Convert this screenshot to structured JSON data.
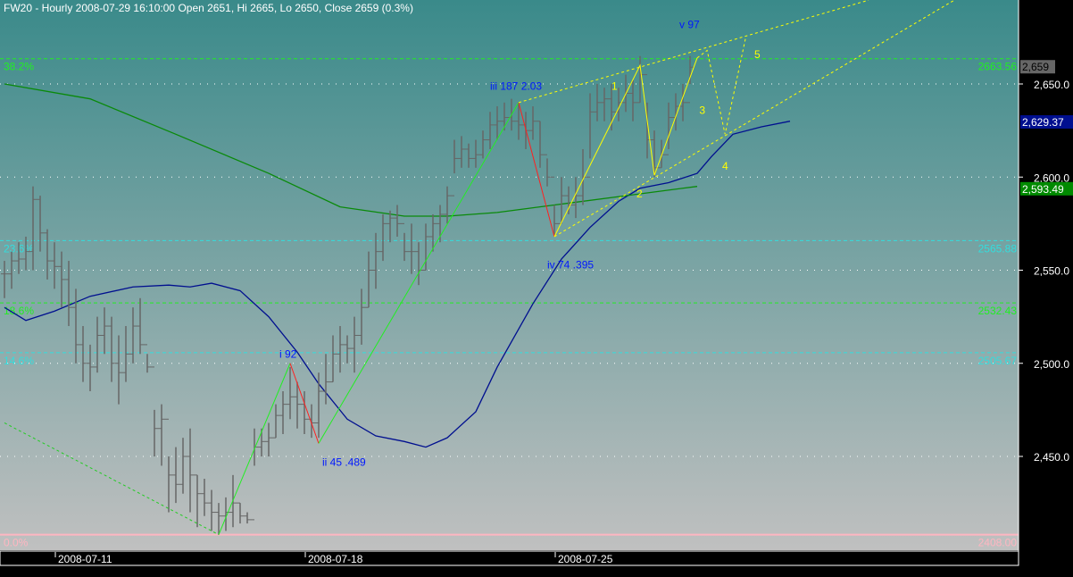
{
  "header": {
    "title": "FW20 - Hourly 2008-07-29 16:10:00 Open 2651, Hi 2665, Lo 2650, Close 2659 (0.3%)"
  },
  "chart_data": {
    "type": "ohlc",
    "ylim": [
      2402,
      2700
    ],
    "grid": true,
    "x_ticks": [
      {
        "index": 7,
        "label": "2008-07-11"
      },
      {
        "index": 42,
        "label": "2008-07-18"
      },
      {
        "index": 77,
        "label": "2008-07-25"
      }
    ],
    "y_ticks": [
      {
        "value": 2650,
        "label": "2,650.0"
      },
      {
        "value": 2600,
        "label": "2,600.0"
      },
      {
        "value": 2550,
        "label": "2,550.0"
      },
      {
        "value": 2500,
        "label": "2,500.0"
      },
      {
        "value": 2450,
        "label": "2,450.0"
      }
    ],
    "bars_hlc": [
      [
        2555,
        2535,
        2548
      ],
      [
        2560,
        2540,
        2555
      ],
      [
        2565,
        2548,
        2556
      ],
      [
        2568,
        2550,
        2560
      ],
      [
        2595,
        2550,
        2588
      ],
      [
        2590,
        2560,
        2570
      ],
      [
        2572,
        2545,
        2555
      ],
      [
        2565,
        2540,
        2552
      ],
      [
        2560,
        2530,
        2545
      ],
      [
        2555,
        2520,
        2530
      ],
      [
        2540,
        2500,
        2510
      ],
      [
        2520,
        2490,
        2500
      ],
      [
        2510,
        2485,
        2498
      ],
      [
        2525,
        2495,
        2515
      ],
      [
        2530,
        2505,
        2520
      ],
      [
        2525,
        2490,
        2500
      ],
      [
        2515,
        2478,
        2495
      ],
      [
        2520,
        2490,
        2505
      ],
      [
        2530,
        2500,
        2520
      ],
      [
        2535,
        2505,
        2510
      ],
      [
        2505,
        2495,
        2498
      ],
      [
        2475,
        2450,
        2465
      ],
      [
        2478,
        2445,
        2470
      ],
      [
        2450,
        2420,
        2440
      ],
      [
        2455,
        2425,
        2435
      ],
      [
        2460,
        2430,
        2450
      ],
      [
        2465,
        2420,
        2440
      ],
      [
        2440,
        2412,
        2430
      ],
      [
        2438,
        2418,
        2425
      ],
      [
        2432,
        2410,
        2420
      ],
      [
        2425,
        2408,
        2418
      ],
      [
        2428,
        2410,
        2420
      ],
      [
        2440,
        2412,
        2425
      ],
      [
        2425,
        2414,
        2418
      ],
      [
        2420,
        2414,
        2416
      ],
      [
        2465,
        2445,
        2455
      ],
      [
        2465,
        2450,
        2458
      ],
      [
        2468,
        2450,
        2460
      ],
      [
        2478,
        2460,
        2472
      ],
      [
        2485,
        2462,
        2478
      ],
      [
        2498,
        2470,
        2482
      ],
      [
        2490,
        2465,
        2478
      ],
      [
        2485,
        2462,
        2470
      ],
      [
        2478,
        2460,
        2468
      ],
      [
        2495,
        2460,
        2485
      ],
      [
        2505,
        2478,
        2490
      ],
      [
        2515,
        2490,
        2505
      ],
      [
        2520,
        2495,
        2510
      ],
      [
        2515,
        2500,
        2508
      ],
      [
        2525,
        2495,
        2515
      ],
      [
        2540,
        2510,
        2530
      ],
      [
        2560,
        2530,
        2550
      ],
      [
        2570,
        2540,
        2560
      ],
      [
        2580,
        2555,
        2575
      ],
      [
        2582,
        2565,
        2578
      ],
      [
        2585,
        2568,
        2575
      ],
      [
        2570,
        2555,
        2560
      ],
      [
        2575,
        2548,
        2560
      ],
      [
        2565,
        2542,
        2550
      ],
      [
        2575,
        2550,
        2568
      ],
      [
        2580,
        2560,
        2575
      ],
      [
        2585,
        2565,
        2580
      ],
      [
        2595,
        2575,
        2590
      ],
      [
        2620,
        2602,
        2610
      ],
      [
        2622,
        2605,
        2615
      ],
      [
        2618,
        2605,
        2610
      ],
      [
        2620,
        2605,
        2612
      ],
      [
        2625,
        2610,
        2620
      ],
      [
        2635,
        2615,
        2628
      ],
      [
        2638,
        2620,
        2630
      ],
      [
        2640,
        2625,
        2632
      ],
      [
        2642,
        2625,
        2630
      ],
      [
        2640,
        2620,
        2628
      ],
      [
        2635,
        2615,
        2625
      ],
      [
        2638,
        2620,
        2630
      ],
      [
        2630,
        2605,
        2612
      ],
      [
        2610,
        2595,
        2600
      ],
      [
        2585,
        2568,
        2575
      ],
      [
        2600,
        2575,
        2590
      ],
      [
        2595,
        2580,
        2585
      ],
      [
        2600,
        2578,
        2590
      ],
      [
        2615,
        2585,
        2600
      ],
      [
        2645,
        2610,
        2635
      ],
      [
        2650,
        2630,
        2640
      ],
      [
        2648,
        2630,
        2642
      ],
      [
        2650,
        2625,
        2635
      ],
      [
        2648,
        2630,
        2640
      ],
      [
        2655,
        2635,
        2645
      ],
      [
        2652,
        2630,
        2640
      ],
      [
        2665,
        2640,
        2655
      ],
      [
        2640,
        2610,
        2620
      ],
      [
        2625,
        2600,
        2605
      ],
      [
        2620,
        2605,
        2612
      ],
      [
        2640,
        2615,
        2632
      ],
      [
        2645,
        2625,
        2638
      ],
      [
        2650,
        2630,
        2640
      ],
      [
        2665,
        2650,
        2659
      ]
    ],
    "moving_averages": [
      {
        "color": "#000f8f",
        "value_label": "2,629.37",
        "points": [
          [
            0,
            2530
          ],
          [
            3,
            2523
          ],
          [
            7,
            2528
          ],
          [
            12,
            2536
          ],
          [
            18,
            2541
          ],
          [
            23,
            2542
          ],
          [
            26,
            2541
          ],
          [
            29,
            2543
          ],
          [
            33,
            2539
          ],
          [
            37,
            2525
          ],
          [
            41,
            2506
          ],
          [
            44,
            2489
          ],
          [
            48,
            2470
          ],
          [
            52,
            2461
          ],
          [
            56,
            2458
          ],
          [
            59,
            2455
          ],
          [
            62,
            2460
          ],
          [
            66,
            2474
          ],
          [
            69,
            2498
          ],
          [
            74,
            2532
          ],
          [
            78,
            2556
          ],
          [
            82,
            2573
          ],
          [
            86,
            2587
          ],
          [
            89,
            2594
          ],
          [
            93,
            2597
          ],
          [
            97,
            2602
          ],
          [
            99,
            2611
          ],
          [
            102,
            2623
          ],
          [
            106,
            2627
          ],
          [
            110,
            2630
          ]
        ]
      },
      {
        "color": "#0a8a0a",
        "value_label": "2,593.49",
        "points": [
          [
            0,
            2650
          ],
          [
            12,
            2642
          ],
          [
            24,
            2623
          ],
          [
            37,
            2602
          ],
          [
            47,
            2584
          ],
          [
            56,
            2579
          ],
          [
            62,
            2579
          ],
          [
            69,
            2581
          ],
          [
            77,
            2585
          ],
          [
            87,
            2590
          ],
          [
            97,
            2595
          ]
        ]
      }
    ],
    "last_price_label": "2,659",
    "fib_levels": [
      {
        "pct": "38.2%",
        "value": 2663.56,
        "label": "2663.56",
        "color": "#22ee22"
      },
      {
        "pct": "23.6%",
        "value": 2565.88,
        "label": "2565.88",
        "color": "#33dddd"
      },
      {
        "pct": "18.6%",
        "value": 2532.43,
        "label": "2532.43",
        "color": "#22ee22"
      },
      {
        "pct": "14.6%",
        "value": 2505.67,
        "label": "2505.67",
        "color": "#33dddd"
      },
      {
        "pct": "0.0%",
        "value": 2408.0,
        "label": "2408.00",
        "color": "#ffb6c1"
      }
    ],
    "wave_lines": [
      {
        "color": "#22ee22",
        "points": [
          [
            30,
            2408
          ],
          [
            40,
            2500
          ]
        ]
      },
      {
        "color": "#ff2020",
        "points": [
          [
            40,
            2500
          ],
          [
            44,
            2457
          ]
        ]
      },
      {
        "color": "#22ee22",
        "points": [
          [
            44,
            2457
          ],
          [
            72,
            2640
          ]
        ]
      },
      {
        "color": "#ff2020",
        "points": [
          [
            72,
            2640
          ],
          [
            77,
            2568
          ]
        ]
      },
      {
        "color": "#ffff00",
        "points": [
          [
            77,
            2568
          ],
          [
            89,
            2660
          ],
          [
            91,
            2601
          ],
          [
            97,
            2664
          ]
        ]
      },
      {
        "color": "#ffff00",
        "dashed": true,
        "points": [
          [
            97,
            2664
          ],
          [
            98.4,
            2668
          ],
          [
            100.9,
            2623
          ],
          [
            103.8,
            2675
          ]
        ]
      },
      {
        "color": "#ffff00",
        "dashed": true,
        "points": [
          [
            72,
            2640
          ],
          [
            121,
            2695
          ]
        ]
      },
      {
        "color": "#ffff00",
        "dashed": true,
        "points": [
          [
            77,
            2568
          ],
          [
            133,
            2695
          ]
        ]
      },
      {
        "color": "#22cc22",
        "dashed": true,
        "points": [
          [
            0,
            2468
          ],
          [
            30,
            2408
          ]
        ]
      }
    ],
    "wave_labels": [
      {
        "text": "i 92",
        "index": 38.5,
        "price": 2503,
        "color": "#0018ff"
      },
      {
        "text": "ii 45 .489",
        "index": 44.5,
        "price": 2445,
        "color": "#0018ff"
      },
      {
        "text": "iii 187 2.03",
        "index": 68,
        "price": 2647,
        "color": "#0018ff"
      },
      {
        "text": "iv 74 .395",
        "index": 76,
        "price": 2551,
        "color": "#0018ff"
      },
      {
        "text": "v 97",
        "index": 94.5,
        "price": 2680,
        "color": "#0018ff"
      },
      {
        "text": "1",
        "index": 85,
        "price": 2647,
        "color": "#ffff00"
      },
      {
        "text": "2",
        "index": 88.5,
        "price": 2589,
        "color": "#ffff00"
      },
      {
        "text": "3",
        "index": 97.3,
        "price": 2634,
        "color": "#ffff00"
      },
      {
        "text": "4",
        "index": 100.5,
        "price": 2604,
        "color": "#ffff00"
      },
      {
        "text": "5",
        "index": 105,
        "price": 2664,
        "color": "#ffff00"
      }
    ]
  }
}
